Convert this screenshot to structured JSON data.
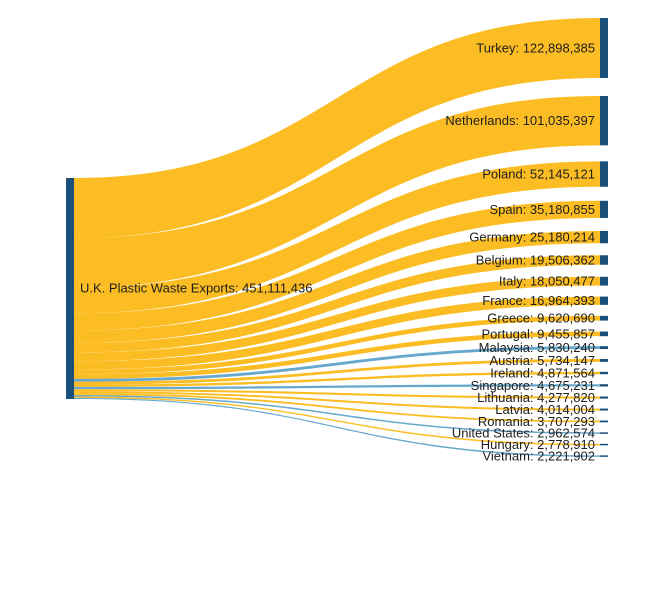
{
  "chart_data": {
    "type": "sankey",
    "colors": {
      "node": "#1a4f7a",
      "eu_link": "#fbb917",
      "non_eu_link": "#5fa3c9"
    },
    "source": {
      "name": "U.K. Plastic Waste Exports",
      "value_text": "451,111,436",
      "value": 451111436
    },
    "targets": [
      {
        "name": "Turkey",
        "value_text": "122,898,385",
        "value": 122898385,
        "link_color": "eu_link"
      },
      {
        "name": "Netherlands",
        "value_text": "101,035,397",
        "value": 101035397,
        "link_color": "eu_link"
      },
      {
        "name": "Poland",
        "value_text": "52,145,121",
        "value": 52145121,
        "link_color": "eu_link"
      },
      {
        "name": "Spain",
        "value_text": "35,180,855",
        "value": 35180855,
        "link_color": "eu_link"
      },
      {
        "name": "Germany",
        "value_text": "25,180,214",
        "value": 25180214,
        "link_color": "eu_link"
      },
      {
        "name": "Belgium",
        "value_text": "19,506,362",
        "value": 19506362,
        "link_color": "eu_link"
      },
      {
        "name": "Italy",
        "value_text": "18,050,477",
        "value": 18050477,
        "link_color": "eu_link"
      },
      {
        "name": "France",
        "value_text": "16,964,393",
        "value": 16964393,
        "link_color": "eu_link"
      },
      {
        "name": "Greece",
        "value_text": "9,620,690",
        "value": 9620690,
        "link_color": "eu_link"
      },
      {
        "name": "Portugal",
        "value_text": "9,455,857",
        "value": 9455857,
        "link_color": "eu_link"
      },
      {
        "name": "Malaysia",
        "value_text": "5,830,240",
        "value": 5830240,
        "link_color": "non_eu_link"
      },
      {
        "name": "Austria",
        "value_text": "5,734,147",
        "value": 5734147,
        "link_color": "eu_link"
      },
      {
        "name": "Ireland",
        "value_text": "4,871,564",
        "value": 4871564,
        "link_color": "eu_link"
      },
      {
        "name": "Singapore",
        "value_text": "4,675,231",
        "value": 4675231,
        "link_color": "non_eu_link"
      },
      {
        "name": "Lithuania",
        "value_text": "4,277,820",
        "value": 4277820,
        "link_color": "eu_link"
      },
      {
        "name": "Latvia",
        "value_text": "4,014,004",
        "value": 4014004,
        "link_color": "eu_link"
      },
      {
        "name": "Romania",
        "value_text": "3,707,293",
        "value": 3707293,
        "link_color": "eu_link"
      },
      {
        "name": "United States",
        "value_text": "2,962,574",
        "value": 2962574,
        "link_color": "non_eu_link"
      },
      {
        "name": "Hungary",
        "value_text": "2,778,910",
        "value": 2778910,
        "link_color": "eu_link"
      },
      {
        "name": "Vietnam",
        "value_text": "2,221,902",
        "value": 2221902,
        "link_color": "non_eu_link"
      }
    ]
  }
}
